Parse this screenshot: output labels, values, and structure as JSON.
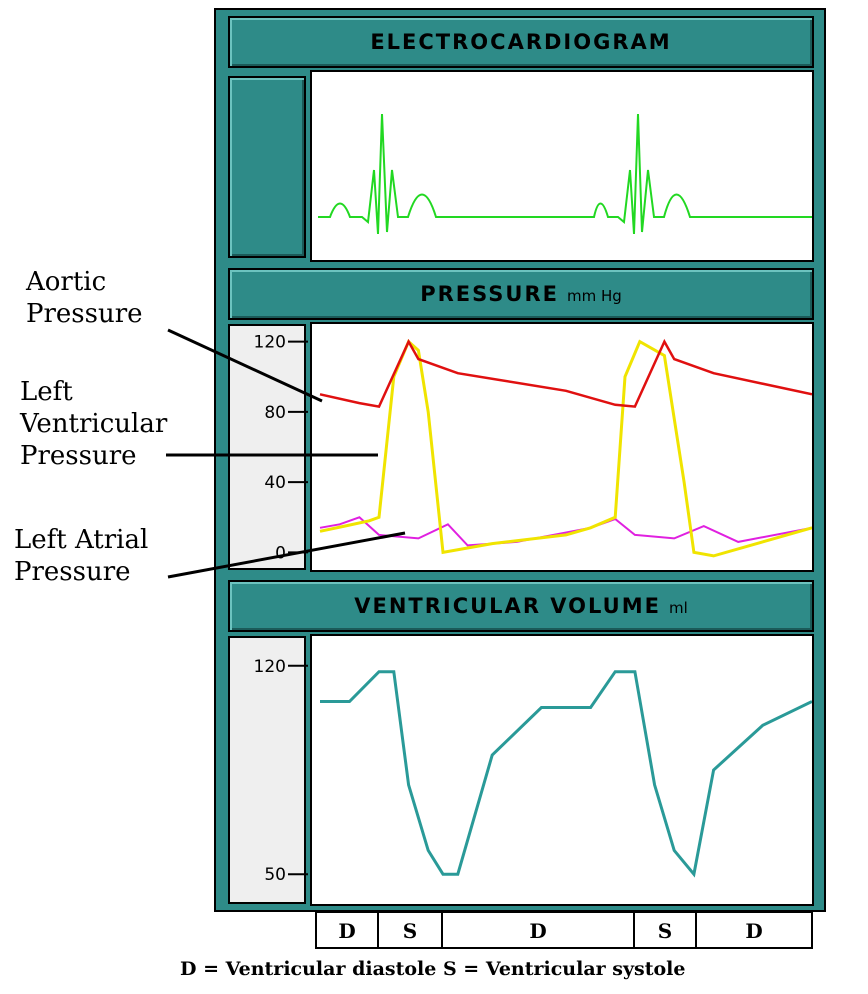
{
  "panels": {
    "ecg": {
      "title": "ELECTROCARDIOGRAM"
    },
    "pressure": {
      "title": "PRESSURE",
      "unit": "mm Hg",
      "ticks": [
        "120",
        "80",
        "40",
        "0"
      ]
    },
    "volume": {
      "title": "VENTRICULAR VOLUME",
      "unit": "ml",
      "ticks": [
        "120",
        "50"
      ]
    }
  },
  "annotations": {
    "aortic_line1": "Aortic",
    "aortic_line2": "Pressure",
    "lv_line1": "Left",
    "lv_line2": "Ventricular",
    "lv_line3": "Pressure",
    "la_line1": "Left Atrial",
    "la_line2": "Pressure"
  },
  "phases": [
    "D",
    "S",
    "D",
    "S",
    "D"
  ],
  "legend": "D = Ventricular diastole   S = Ventricular systole",
  "colors": {
    "panel": "#2e8b88",
    "ecg": "#22d822",
    "aortic": "#e01010",
    "lv": "#f0e400",
    "la": "#e020e0",
    "volume": "#2a9a98",
    "axis_bg": "#efefef"
  },
  "chart_data": [
    {
      "type": "line",
      "title": "ELECTROCARDIOGRAM",
      "series": [],
      "notes": "two cardiac cycles of ECG (P wave, QRS complex, T wave)"
    },
    {
      "type": "line",
      "title": "PRESSURE mm Hg",
      "ylim": [
        -10,
        130
      ],
      "yticks": [
        0,
        40,
        80,
        120
      ],
      "series": [
        {
          "name": "Aortic Pressure",
          "color": "#e01010",
          "t": [
            0,
            0.08,
            0.12,
            0.18,
            0.2,
            0.28,
            0.5,
            0.6,
            0.64,
            0.7,
            0.72,
            0.8,
            1.0
          ],
          "values": [
            90,
            85,
            83,
            120,
            110,
            102,
            92,
            84,
            83,
            120,
            110,
            102,
            90
          ]
        },
        {
          "name": "Left Ventricular Pressure",
          "color": "#f0e400",
          "t": [
            0,
            0.05,
            0.1,
            0.12,
            0.15,
            0.18,
            0.2,
            0.22,
            0.25,
            0.35,
            0.5,
            0.55,
            0.6,
            0.62,
            0.65,
            0.7,
            0.74,
            0.76,
            0.8,
            1.0
          ],
          "values": [
            12,
            15,
            18,
            20,
            100,
            120,
            115,
            80,
            0,
            5,
            10,
            14,
            20,
            100,
            120,
            112,
            40,
            0,
            -2,
            14
          ]
        },
        {
          "name": "Left Atrial Pressure",
          "color": "#e020e0",
          "t": [
            0,
            0.04,
            0.08,
            0.12,
            0.2,
            0.26,
            0.3,
            0.4,
            0.55,
            0.6,
            0.64,
            0.72,
            0.78,
            0.85,
            1.0
          ],
          "values": [
            14,
            16,
            20,
            10,
            8,
            16,
            4,
            6,
            14,
            19,
            10,
            8,
            15,
            6,
            14
          ]
        }
      ]
    },
    {
      "type": "line",
      "title": "VENTRICULAR VOLUME ml",
      "ylim": [
        40,
        130
      ],
      "yticks": [
        50,
        120
      ],
      "series": [
        {
          "name": "Ventricular Volume",
          "color": "#2a9a98",
          "t": [
            0,
            0.06,
            0.12,
            0.15,
            0.18,
            0.22,
            0.25,
            0.28,
            0.35,
            0.45,
            0.55,
            0.6,
            0.64,
            0.68,
            0.72,
            0.76,
            0.8,
            0.9,
            1.0
          ],
          "values": [
            108,
            108,
            118,
            118,
            80,
            58,
            50,
            50,
            90,
            106,
            106,
            118,
            118,
            80,
            58,
            50,
            85,
            100,
            108
          ]
        }
      ]
    }
  ]
}
